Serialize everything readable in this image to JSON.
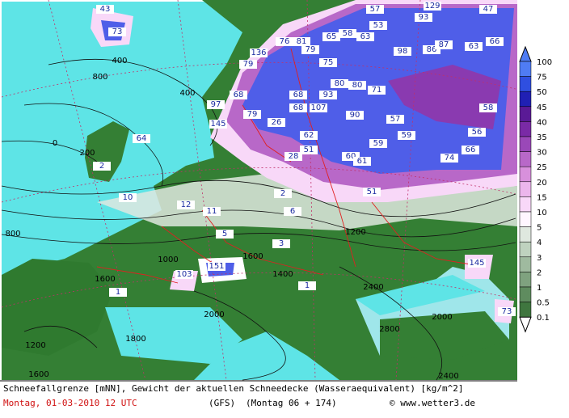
{
  "map": {
    "colorbar": {
      "labels": [
        "100",
        "75",
        "50",
        "45",
        "40",
        "35",
        "30",
        "25",
        "20",
        "15",
        "10",
        "5",
        "4",
        "3",
        "2",
        "1",
        "0.5",
        "0.1"
      ],
      "colors": [
        "#4f7cf4",
        "#2f4fe0",
        "#2020b4",
        "#5a1a96",
        "#7a2aa6",
        "#9a48b8",
        "#b868c8",
        "#d890dc",
        "#ecb6ec",
        "#f8d8f8",
        "#fff6ff",
        "#dfe8df",
        "#bfd2bf",
        "#9fba9f",
        "#7fa27f",
        "#5f8c5f",
        "#3f763f"
      ]
    },
    "snow_labels": [
      "43",
      "73",
      "57",
      "129",
      "47",
      "93",
      "53",
      "58",
      "76",
      "81",
      "79",
      "65",
      "63",
      "136",
      "75",
      "98",
      "86",
      "87",
      "63",
      "66",
      "79",
      "97",
      "68",
      "145",
      "79",
      "68",
      "80",
      "80",
      "71",
      "93",
      "107",
      "68",
      "90",
      "57",
      "26",
      "62",
      "59",
      "59",
      "56",
      "58",
      "51",
      "28",
      "60",
      "61",
      "66",
      "74",
      "64",
      "2",
      "51",
      "10",
      "12",
      "11",
      "2",
      "6",
      "5",
      "3",
      "151",
      "103",
      "145",
      "73",
      "1",
      "1"
    ],
    "contour_labels": [
      "800",
      "400",
      "400",
      "0",
      "200",
      "800",
      "1200",
      "1400",
      "1600",
      "2000",
      "2400",
      "2800",
      "2000",
      "2400",
      "1600",
      "1200",
      "1800",
      "1000",
      "1600"
    ],
    "footer": {
      "description": "Schneefallgrenze [mNN], Gewicht der aktuellen Schneedecke (Wasseraequivalent) [kg/m^2]",
      "date": "Montag, 01-03-2010  12 UTC",
      "model": "(GFS)",
      "run": "(Montag 06 + 174)",
      "credit": "© www.wetter3.de"
    }
  }
}
